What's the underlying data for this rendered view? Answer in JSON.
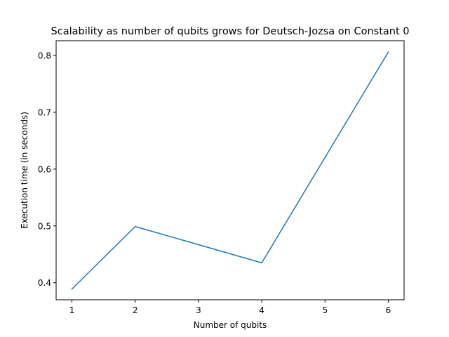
{
  "chart_data": {
    "type": "line",
    "title": "Scalability as number of qubits grows for Deutsch-Jozsa on Constant 0",
    "xlabel": "Number of qubits",
    "ylabel": "Execution time (in seconds)",
    "x": [
      1,
      2,
      4,
      6
    ],
    "series": [
      {
        "values": [
          0.389,
          0.499,
          0.435,
          0.806
        ]
      }
    ],
    "xlim": [
      0.75,
      6.25
    ],
    "ylim": [
      0.37,
      0.826
    ],
    "xticks": [
      1,
      2,
      3,
      4,
      5,
      6
    ],
    "yticks": [
      0.4,
      0.5,
      0.6,
      0.7,
      0.8
    ],
    "grid": false,
    "line_color": "#1f77b4"
  }
}
